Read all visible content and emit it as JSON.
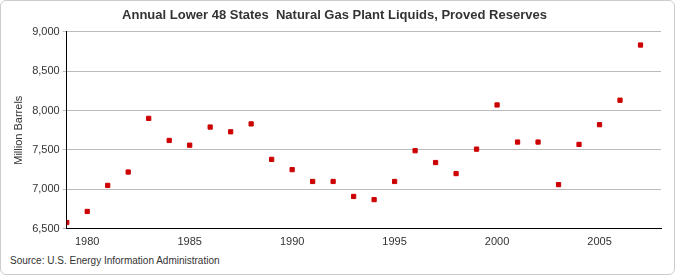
{
  "chart_data": {
    "type": "scatter",
    "title": "Annual Lower 48 States  Natural Gas Plant Liquids, Proved Reserves",
    "y_label": "Million Barrels",
    "source": "Source: U.S. Energy Information Administration",
    "x": [
      1979,
      1980,
      1981,
      1982,
      1983,
      1984,
      1985,
      1986,
      1987,
      1988,
      1989,
      1990,
      1991,
      1992,
      1993,
      1994,
      1995,
      1996,
      1997,
      1998,
      1999,
      2000,
      2001,
      2002,
      2003,
      2004,
      2005,
      2006,
      2007
    ],
    "values": [
      6580,
      6720,
      7050,
      7220,
      7900,
      7620,
      7560,
      7790,
      7730,
      7830,
      7380,
      7250,
      7100,
      7100,
      6910,
      6870,
      7100,
      7490,
      7340,
      7200,
      7510,
      8070,
      7600,
      7600,
      7060,
      7570,
      7820,
      8130,
      8830
    ],
    "color": "#cc0000",
    "marker": "square",
    "xlim": [
      1979,
      2008
    ],
    "xticks": [
      1980,
      1985,
      1990,
      1995,
      2000,
      2005
    ],
    "ylim": [
      6500,
      9000
    ],
    "yticks": [
      {
        "value": 6500,
        "label": "6,500"
      },
      {
        "value": 7000,
        "label": "7,000"
      },
      {
        "value": 7500,
        "label": "7,500"
      },
      {
        "value": 8000,
        "label": "8,000"
      },
      {
        "value": 8500,
        "label": "8,500"
      },
      {
        "value": 9000,
        "label": "9,000"
      }
    ],
    "grid": true
  }
}
